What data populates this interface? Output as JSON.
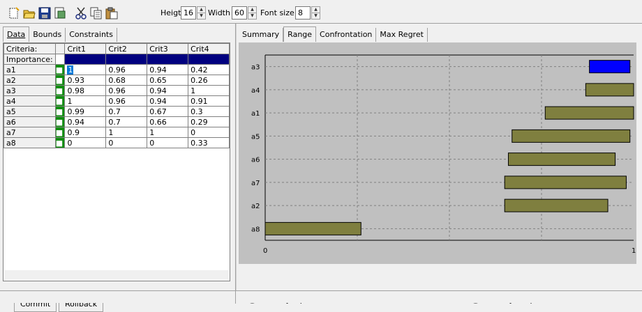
{
  "toolbar": {
    "height_label": "Heigth",
    "height_value": "16",
    "width_label": "Width",
    "width_value": "60",
    "font_label": "Font size",
    "font_value": "8",
    "icons": [
      "new-icon",
      "open-icon",
      "save-icon",
      "export-icon",
      "cut-icon",
      "copy-icon",
      "paste-icon"
    ]
  },
  "left": {
    "tabs": [
      "Data",
      "Bounds",
      "Constraints"
    ],
    "active_tab": "Data",
    "grid": {
      "header": [
        "Criteria:",
        "Crit1",
        "Crit2",
        "Crit3",
        "Crit4"
      ],
      "importance_label": "Importance:",
      "rows": [
        {
          "name": "a1",
          "vals": [
            "1",
            "0.96",
            "0.94",
            "0.42"
          ]
        },
        {
          "name": "a2",
          "vals": [
            "0.93",
            "0.68",
            "0.65",
            "0.26"
          ]
        },
        {
          "name": "a3",
          "vals": [
            "0.98",
            "0.96",
            "0.94",
            "1"
          ]
        },
        {
          "name": "a4",
          "vals": [
            "1",
            "0.96",
            "0.94",
            "0.91"
          ]
        },
        {
          "name": "a5",
          "vals": [
            "0.99",
            "0.7",
            "0.67",
            "0.3"
          ]
        },
        {
          "name": "a6",
          "vals": [
            "0.94",
            "0.7",
            "0.66",
            "0.29"
          ]
        },
        {
          "name": "a7",
          "vals": [
            "0.9",
            "1",
            "1",
            "0"
          ]
        },
        {
          "name": "a8",
          "vals": [
            "0",
            "0",
            "0",
            "0.33"
          ]
        }
      ]
    },
    "commit_label": "Commit",
    "rollback_label": "Rollback"
  },
  "right": {
    "tabs": [
      "Summary",
      "Range",
      "Confrontation",
      "Max Regret"
    ],
    "active_tab": "Range",
    "radio_input": "View by Input order",
    "radio_output": "View by Output order",
    "selected_view": "output"
  },
  "chart_data": {
    "type": "bar",
    "orientation": "horizontal-range",
    "categories": [
      "a3",
      "a4",
      "a1",
      "a5",
      "a6",
      "a7",
      "a2",
      "a8"
    ],
    "ranges": [
      [
        0.88,
        0.99
      ],
      [
        0.87,
        1.0
      ],
      [
        0.76,
        1.0
      ],
      [
        0.67,
        0.99
      ],
      [
        0.66,
        0.95
      ],
      [
        0.65,
        0.98
      ],
      [
        0.65,
        0.93
      ],
      [
        0.0,
        0.26
      ]
    ],
    "highlight": "a3",
    "xlim": [
      0,
      1
    ],
    "xticks": [
      "0",
      "1"
    ],
    "colors": {
      "bar": "#7f7f3f",
      "highlight": "#0000ff",
      "background": "#c0c0c0"
    }
  }
}
